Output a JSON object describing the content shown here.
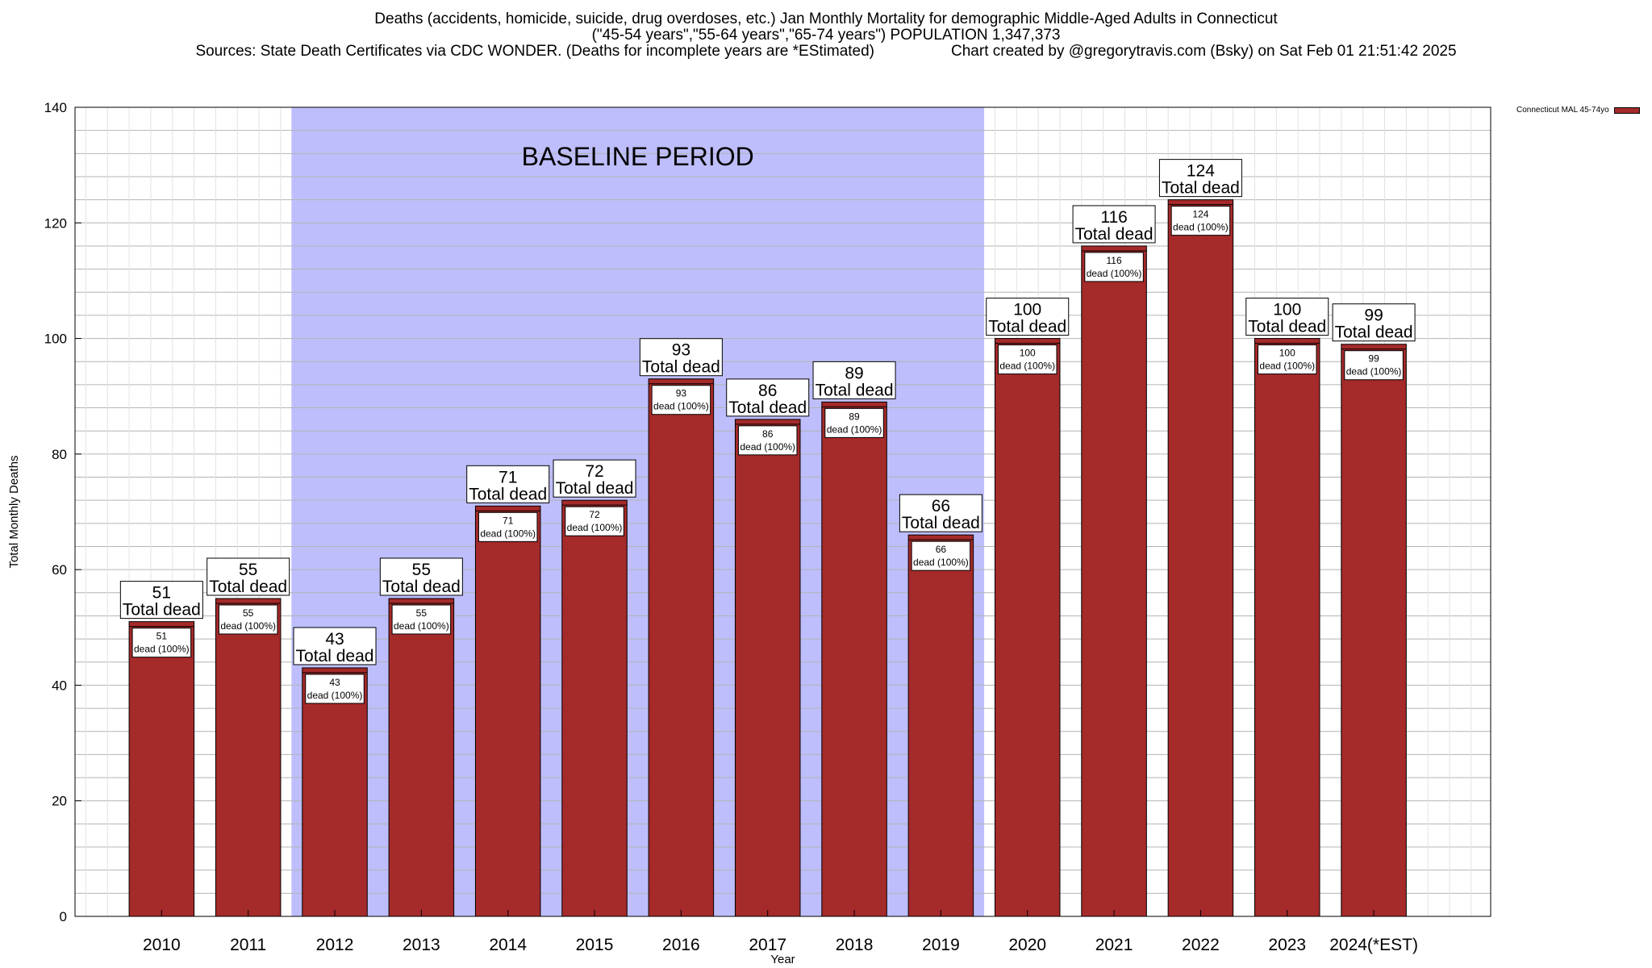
{
  "header": {
    "title_line1": "Deaths (accidents, homicide, suicide, drug overdoses, etc.) Jan Monthly Mortality for demographic Middle-Aged Adults in Connecticut",
    "title_line2": "(\"45-54 years\",\"55-64 years\",\"65-74 years\") POPULATION 1,347,373",
    "sources": "Sources: State Death Certificates via CDC WONDER. (Deaths for incomplete years are *EStimated)",
    "credit": "Chart created by @gregorytravis.com (Bsky) on Sat Feb 01 21:51:42 2025"
  },
  "legend": {
    "label": "Connecticut MAL 45-74yo",
    "color": "#a52a2a"
  },
  "chart_data": {
    "type": "bar",
    "xlabel": "Year",
    "ylabel": "Total Monthly Deaths",
    "ylim": [
      0,
      140
    ],
    "yticks": [
      0,
      20,
      40,
      60,
      80,
      100,
      120,
      140
    ],
    "grid": true,
    "categories": [
      "2010",
      "2011",
      "2012",
      "2013",
      "2014",
      "2015",
      "2016",
      "2017",
      "2018",
      "2019",
      "2020",
      "2021",
      "2022",
      "2023",
      "2024(*EST)"
    ],
    "series": [
      {
        "name": "Connecticut MAL 45-74yo",
        "values": [
          51,
          55,
          43,
          55,
          71,
          72,
          93,
          86,
          89,
          66,
          100,
          116,
          124,
          100,
          99
        ]
      }
    ],
    "total_label": "Total dead",
    "inner_label": "dead (100%)",
    "baseline": {
      "label": "BASELINE PERIOD",
      "from": "2012",
      "to": "2019"
    },
    "colors": {
      "bar": "#a52a2a",
      "baseline": "#bebefc",
      "grid": "#b4b4b4"
    }
  }
}
